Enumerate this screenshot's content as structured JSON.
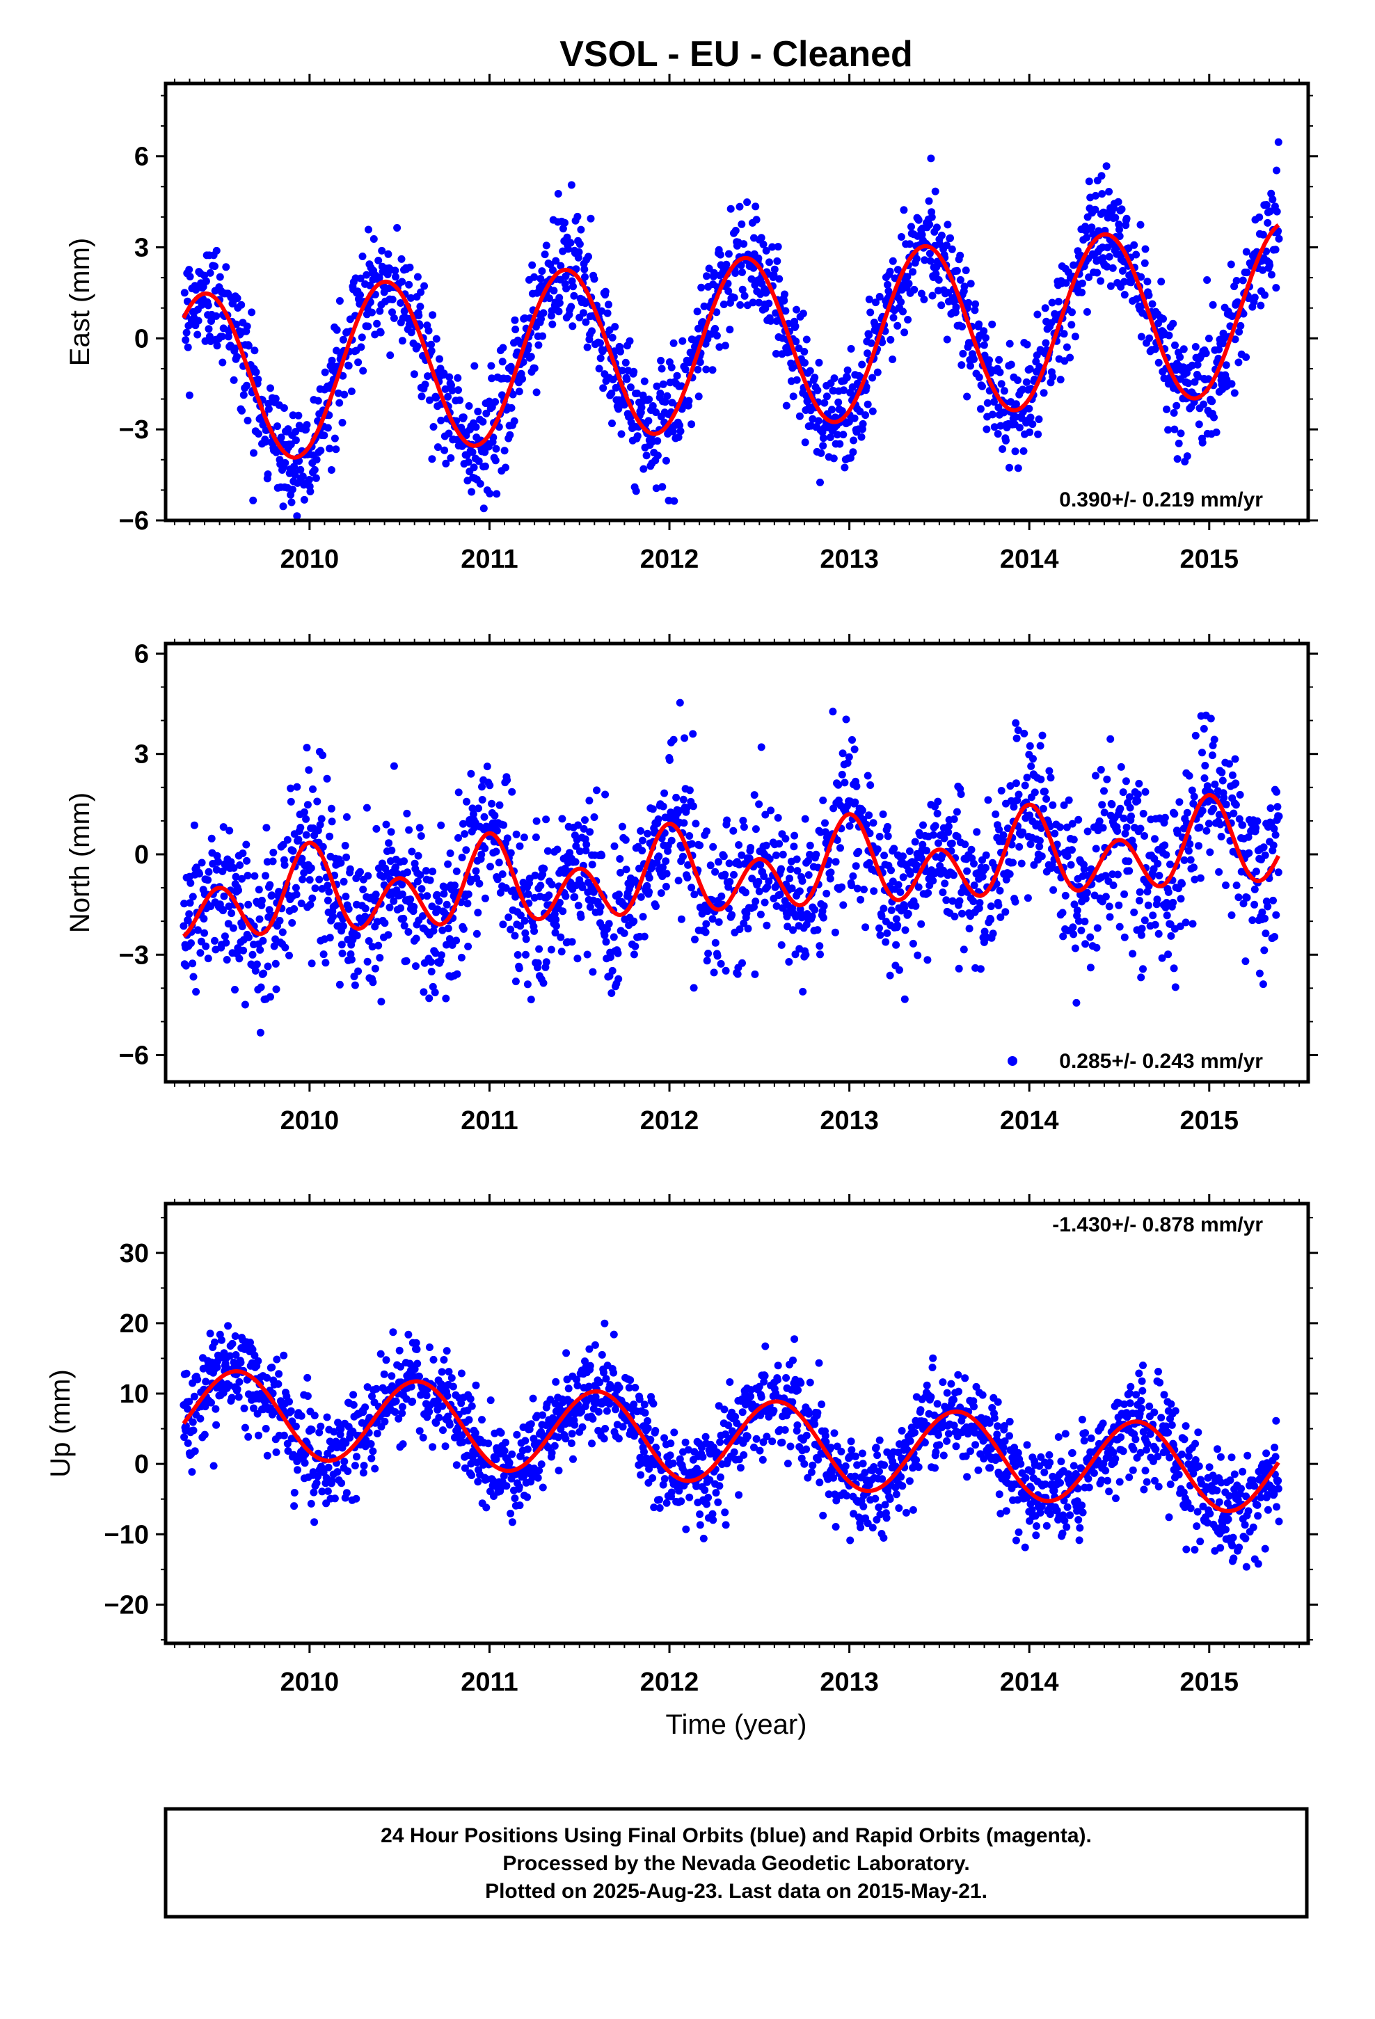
{
  "title": "VSOL  - EU - Cleaned",
  "colors": {
    "points": "#0000ff",
    "fit": "#ff0000",
    "frame": "#000000"
  },
  "caption": {
    "line1": "24 Hour Positions Using Final Orbits (blue) and Rapid Orbits (magenta).",
    "line2": "Processed by the Nevada Geodetic Laboratory.",
    "line3": "Plotted on 2025-Aug-23. Last data on 2015-May-21."
  },
  "chart_data": [
    {
      "type": "scatter",
      "component": "east",
      "ylabel": "East (mm)",
      "xlabel": "",
      "xlim": [
        2009.2,
        2015.55
      ],
      "ylim": [
        -6,
        8.4
      ],
      "yticks": [
        -6,
        -3,
        0,
        3,
        6
      ],
      "ytick_labels": [
        "−6",
        "−3",
        "0",
        "3",
        "6"
      ],
      "xticks": [
        2010,
        2011,
        2012,
        2013,
        2014,
        2015
      ],
      "xtick_labels": [
        "2010",
        "2011",
        "2012",
        "2013",
        "2014",
        "2015"
      ],
      "data_start": 2009.3,
      "data_end": 2015.39,
      "rate_label": "0.390+/- 0.219 mm/yr",
      "rate_position": "bottom-right",
      "rate_marker": false,
      "fit": {
        "offset": -0.2,
        "trend_mm_per_yr": 0.39,
        "annual_amplitude": 2.8,
        "annual_phase_peak": 0.42,
        "semiannual_amplitude": 0.0
      },
      "scatter_sd": 0.95,
      "series": [
        {
          "name": "Final Orbits (blue)",
          "style": "points"
        },
        {
          "name": "Model fit",
          "style": "line"
        }
      ]
    },
    {
      "type": "scatter",
      "component": "north",
      "ylabel": "North (mm)",
      "xlabel": "",
      "xlim": [
        2009.2,
        2015.55
      ],
      "ylim": [
        -6.8,
        6.3
      ],
      "yticks": [
        -6,
        -3,
        0,
        3,
        6
      ],
      "ytick_labels": [
        "−6",
        "−3",
        "0",
        "3",
        "6"
      ],
      "xticks": [
        2010,
        2011,
        2012,
        2013,
        2014,
        2015
      ],
      "xtick_labels": [
        "2010",
        "2011",
        "2012",
        "2013",
        "2014",
        "2015"
      ],
      "data_start": 2009.3,
      "data_end": 2015.39,
      "rate_label": "0.285+/- 0.243 mm/yr",
      "rate_position": "bottom-right",
      "rate_marker": true,
      "fit": {
        "offset": -0.6,
        "trend_mm_per_yr": 0.285,
        "annual_amplitude": 0.6,
        "annual_phase_peak": 0.0,
        "semiannual_amplitude": 1.0
      },
      "scatter_sd": 1.2,
      "series": [
        {
          "name": "Final Orbits (blue)",
          "style": "points"
        },
        {
          "name": "Model fit",
          "style": "line"
        }
      ]
    },
    {
      "type": "scatter",
      "component": "up",
      "ylabel": "Up (mm)",
      "xlabel": "Time (year)",
      "xlim": [
        2009.2,
        2015.55
      ],
      "ylim": [
        -25.5,
        37
      ],
      "yticks": [
        -20,
        -10,
        0,
        10,
        20,
        30
      ],
      "ytick_labels": [
        "−20",
        "−10",
        "0",
        "10",
        "20",
        "30"
      ],
      "xticks": [
        2010,
        2011,
        2012,
        2013,
        2014,
        2015
      ],
      "xtick_labels": [
        "2010",
        "2011",
        "2012",
        "2013",
        "2014",
        "2015"
      ],
      "data_start": 2009.3,
      "data_end": 2015.39,
      "rate_label": "-1.430+/- 0.878 mm/yr",
      "rate_position": "top-right",
      "rate_marker": false,
      "fit": {
        "offset": 3.3,
        "trend_mm_per_yr": -1.43,
        "annual_amplitude": 6.0,
        "annual_phase_peak": 0.6,
        "semiannual_amplitude": 0.0
      },
      "scatter_sd": 3.4,
      "series": [
        {
          "name": "Final Orbits (blue)",
          "style": "points"
        },
        {
          "name": "Model fit",
          "style": "line"
        }
      ]
    }
  ]
}
